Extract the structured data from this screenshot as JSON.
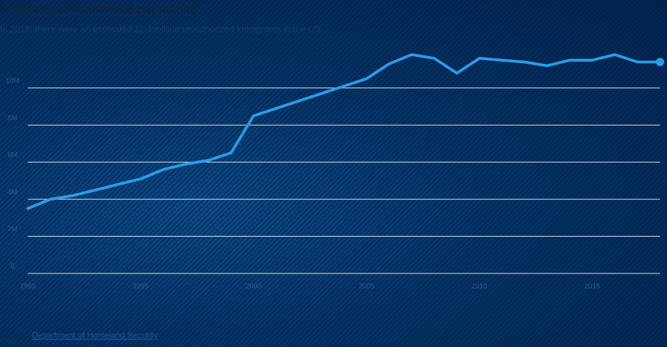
{
  "chart_data": {
    "type": "line",
    "title": "Estimated unauthorized population",
    "subtitle": "In 2018, there were an estimated 11.4 million unauthorized immigrants in the US.",
    "x": [
      1990,
      1991,
      1992,
      1993,
      1994,
      1995,
      1996,
      1997,
      1998,
      1999,
      2000,
      2001,
      2002,
      2003,
      2004,
      2005,
      2006,
      2007,
      2008,
      2009,
      2010,
      2011,
      2012,
      2013,
      2014,
      2015,
      2016,
      2017,
      2018
    ],
    "values": [
      3.5,
      4.0,
      4.2,
      4.5,
      4.8,
      5.1,
      5.6,
      5.9,
      6.1,
      6.5,
      8.5,
      8.9,
      9.3,
      9.7,
      10.1,
      10.5,
      11.3,
      11.8,
      11.6,
      10.8,
      11.6,
      11.5,
      11.4,
      11.2,
      11.5,
      11.5,
      11.8,
      11.4,
      11.4
    ],
    "color": "#2e9be6",
    "xlim": [
      1990,
      2018
    ],
    "xticks": [
      1990,
      1995,
      2000,
      2005,
      2010,
      2015
    ],
    "ylim": [
      0,
      12.5
    ],
    "yticks": [
      0,
      {
        "value": 2,
        "label": "2M"
      },
      {
        "value": 4,
        "label": "4M"
      },
      {
        "value": 6,
        "label": "6M"
      },
      {
        "value": 8,
        "label": "8M"
      },
      {
        "value": 10,
        "label": "10M"
      }
    ],
    "grid": true,
    "source": {
      "label": "Source:",
      "link": "Department of Homeland Security"
    }
  }
}
